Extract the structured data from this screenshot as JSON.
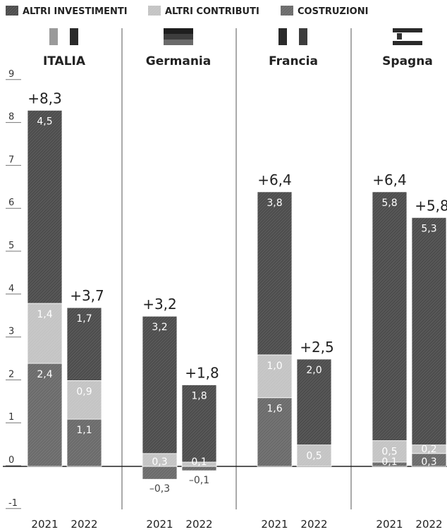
{
  "legend": [
    {
      "label": "ALTRI INVESTIMENTI",
      "color": "#4d4d4d"
    },
    {
      "label": "ALTRI CONTRIBUTI",
      "color": "#c4c4c4"
    },
    {
      "label": "COSTRUZIONI",
      "color": "#6b6b6b"
    }
  ],
  "chart_data": {
    "type": "bar",
    "stacked": true,
    "ylim": [
      -1,
      9
    ],
    "yticks": [
      "-1",
      "0",
      "1",
      "2",
      "3",
      "4",
      "5",
      "6",
      "7",
      "8",
      "9"
    ],
    "years": [
      "2021",
      "2022"
    ],
    "series": [
      {
        "name": "COSTRUZIONI",
        "color": "#6b6b6b"
      },
      {
        "name": "ALTRI CONTRIBUTI",
        "color": "#c4c4c4"
      },
      {
        "name": "ALTRI INVESTIMENTI",
        "color": "#4d4d4d"
      }
    ],
    "countries": [
      {
        "name": "ITALIA",
        "flag": "italy-flag-icon",
        "bars": [
          {
            "year": "2021",
            "total": "+8,3",
            "segments": [
              {
                "series": "COSTRUZIONI",
                "value": 2.4,
                "label": "2,4"
              },
              {
                "series": "ALTRI CONTRIBUTI",
                "value": 1.4,
                "label": "1,4"
              },
              {
                "series": "ALTRI INVESTIMENTI",
                "value": 4.5,
                "label": "4,5"
              }
            ]
          },
          {
            "year": "2022",
            "total": "+3,7",
            "segments": [
              {
                "series": "COSTRUZIONI",
                "value": 1.1,
                "label": "1,1"
              },
              {
                "series": "ALTRI CONTRIBUTI",
                "value": 0.9,
                "label": "0,9"
              },
              {
                "series": "ALTRI INVESTIMENTI",
                "value": 1.7,
                "label": "1,7"
              }
            ]
          }
        ]
      },
      {
        "name": "Germania",
        "flag": "germany-flag-icon",
        "bars": [
          {
            "year": "2021",
            "total": "+3,2",
            "segments": [
              {
                "series": "COSTRUZIONI",
                "value": -0.3,
                "label": "–0,3"
              },
              {
                "series": "ALTRI CONTRIBUTI",
                "value": 0.3,
                "label": "0,3"
              },
              {
                "series": "ALTRI INVESTIMENTI",
                "value": 3.2,
                "label": "3,2"
              }
            ]
          },
          {
            "year": "2022",
            "total": "+1,8",
            "segments": [
              {
                "series": "COSTRUZIONI",
                "value": -0.1,
                "label": "–0,1"
              },
              {
                "series": "ALTRI CONTRIBUTI",
                "value": 0.1,
                "label": "0,1"
              },
              {
                "series": "ALTRI INVESTIMENTI",
                "value": 1.8,
                "label": "1,8"
              }
            ]
          }
        ]
      },
      {
        "name": "Francia",
        "flag": "france-flag-icon",
        "bars": [
          {
            "year": "2021",
            "total": "+6,4",
            "segments": [
              {
                "series": "COSTRUZIONI",
                "value": 1.6,
                "label": "1,6"
              },
              {
                "series": "ALTRI CONTRIBUTI",
                "value": 1.0,
                "label": "1,0"
              },
              {
                "series": "ALTRI INVESTIMENTI",
                "value": 3.8,
                "label": "3,8"
              }
            ]
          },
          {
            "year": "2022",
            "total": "+2,5",
            "segments": [
              {
                "series": "ALTRI CONTRIBUTI",
                "value": 0.5,
                "label": "0,5"
              },
              {
                "series": "ALTRI INVESTIMENTI",
                "value": 2.0,
                "label": "2,0"
              }
            ]
          }
        ]
      },
      {
        "name": "Spagna",
        "flag": "spain-flag-icon",
        "bars": [
          {
            "year": "2021",
            "total": "+6,4",
            "segments": [
              {
                "series": "COSTRUZIONI",
                "value": 0.1,
                "label": "0,1"
              },
              {
                "series": "ALTRI CONTRIBUTI",
                "value": 0.5,
                "label": "0,5"
              },
              {
                "series": "ALTRI INVESTIMENTI",
                "value": 5.8,
                "label": "5,8"
              }
            ]
          },
          {
            "year": "2022",
            "total": "+5,8",
            "segments": [
              {
                "series": "COSTRUZIONI",
                "value": 0.3,
                "label": "0,3"
              },
              {
                "series": "ALTRI CONTRIBUTI",
                "value": 0.2,
                "label": "0,2"
              },
              {
                "series": "ALTRI INVESTIMENTI",
                "value": 5.3,
                "label": "5,3"
              }
            ]
          }
        ]
      }
    ]
  }
}
